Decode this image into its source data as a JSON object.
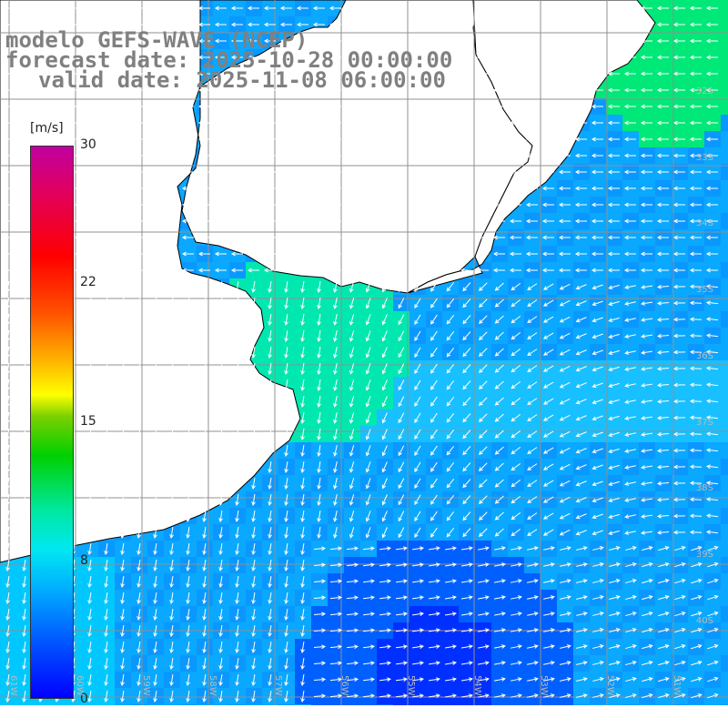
{
  "title": {
    "line1": "modelo GEFS-WAVE (NCEP)",
    "line2": "forecast date: 2025-10-28 00:00:00",
    "line3": "valid date: 2025-11-08 06:00:00"
  },
  "colorbar": {
    "unit": "[m/s]",
    "ticks": [
      "30",
      "22",
      "15",
      "8",
      "0"
    ],
    "range": [
      0,
      30
    ]
  },
  "grid": {
    "lat_labels": [
      "32S",
      "33S",
      "34S",
      "35S",
      "36S",
      "37S",
      "38S",
      "39S",
      "40S"
    ],
    "lon_labels": [
      "61W",
      "60W",
      "59W",
      "58W",
      "57W",
      "56W",
      "55W",
      "54W",
      "53W",
      "52W",
      "51W"
    ]
  },
  "colors": {
    "ocean_base": "#0aa8ff",
    "strong_wind": "#00e8a0",
    "calm_wind": "#0030ff",
    "coastline": "#000000",
    "grid_lines": "#909090"
  },
  "icons": {
    "wind_vector": "arrow-icon"
  }
}
